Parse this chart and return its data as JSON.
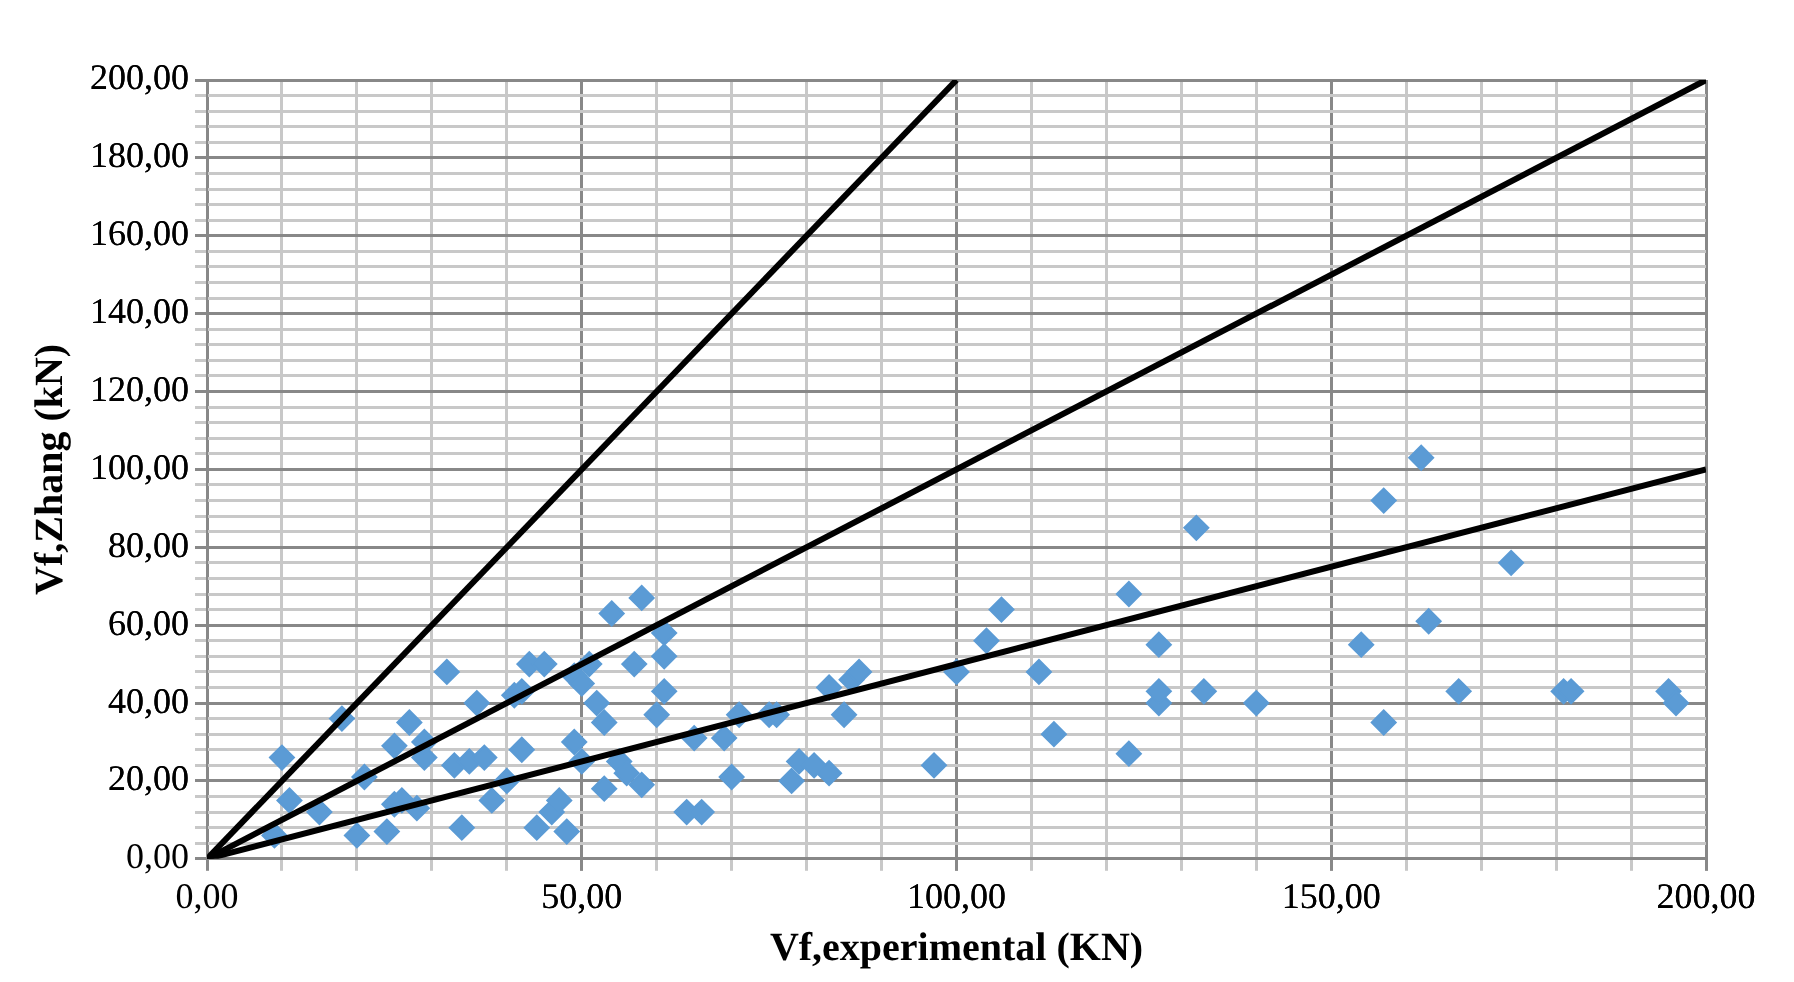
{
  "chart_data": {
    "type": "scatter",
    "xlabel": "Vf,experimental (KN)",
    "ylabel": "Vf,Zhang (kN)",
    "xlim": [
      0,
      200
    ],
    "ylim": [
      0,
      200
    ],
    "xticks": [
      {
        "value": 0,
        "label": "0,00"
      },
      {
        "value": 50,
        "label": "50,00"
      },
      {
        "value": 100,
        "label": "100,00"
      },
      {
        "value": 150,
        "label": "150,00"
      },
      {
        "value": 200,
        "label": "200,00"
      }
    ],
    "yticks": [
      {
        "value": 0,
        "label": "0,00"
      },
      {
        "value": 20,
        "label": "20,00"
      },
      {
        "value": 40,
        "label": "40,00"
      },
      {
        "value": 60,
        "label": "60,00"
      },
      {
        "value": 80,
        "label": "80,00"
      },
      {
        "value": 100,
        "label": "100,00"
      },
      {
        "value": 120,
        "label": "120,00"
      },
      {
        "value": 140,
        "label": "140,00"
      },
      {
        "value": 160,
        "label": "160,00"
      },
      {
        "value": 180,
        "label": "180,00"
      },
      {
        "value": 200,
        "label": "200,00"
      }
    ],
    "grid": true,
    "legend": false,
    "marker": "diamond",
    "series": [
      {
        "color": "#5b9bd5",
        "x": [
          9,
          10,
          11,
          15,
          18,
          20,
          21,
          24,
          25,
          25,
          26,
          27,
          28,
          29,
          29,
          32,
          33,
          34,
          35,
          36,
          37,
          38,
          40,
          41,
          42,
          42,
          43,
          44,
          45,
          46,
          47,
          48,
          49,
          49,
          50,
          50,
          51,
          52,
          53,
          53,
          54,
          55,
          56,
          57,
          58,
          58,
          60,
          61,
          61,
          61,
          64,
          65,
          66,
          69,
          70,
          71,
          75,
          76,
          78,
          79,
          81,
          83,
          83,
          85,
          86,
          87,
          97,
          100,
          104,
          106,
          111,
          113,
          123,
          123,
          127,
          127,
          127,
          132,
          133,
          140,
          154,
          157,
          157,
          162,
          163,
          167,
          174,
          181,
          182,
          195,
          196
        ],
        "values": [
          6,
          26,
          15,
          12,
          36,
          6,
          21,
          7,
          14,
          29,
          15,
          35,
          13,
          26,
          30,
          48,
          24,
          8,
          25,
          40,
          26,
          15,
          20,
          42,
          43,
          28,
          50,
          8,
          50,
          12,
          15,
          7,
          47,
          30,
          25,
          45,
          50,
          40,
          35,
          18,
          63,
          25,
          22,
          50,
          67,
          19,
          37,
          52,
          43,
          58,
          12,
          31,
          12,
          31,
          21,
          37,
          37,
          37,
          20,
          25,
          24,
          22,
          44,
          37,
          46,
          48,
          24,
          48,
          56,
          64,
          48,
          32,
          68,
          27,
          40,
          43,
          55,
          85,
          43,
          40,
          55,
          35,
          92,
          103,
          61,
          43,
          76,
          43,
          43,
          43,
          40
        ]
      },
      {
        "type": "line",
        "color": "#000000",
        "marker": "none",
        "x": [
          0,
          100
        ],
        "values": [
          0,
          200
        ]
      },
      {
        "type": "line",
        "color": "#000000",
        "marker": "none",
        "x": [
          0,
          200
        ],
        "values": [
          0,
          200
        ]
      },
      {
        "type": "line",
        "color": "#000000",
        "marker": "none",
        "x": [
          0,
          200
        ],
        "values": [
          0,
          100
        ]
      }
    ]
  }
}
